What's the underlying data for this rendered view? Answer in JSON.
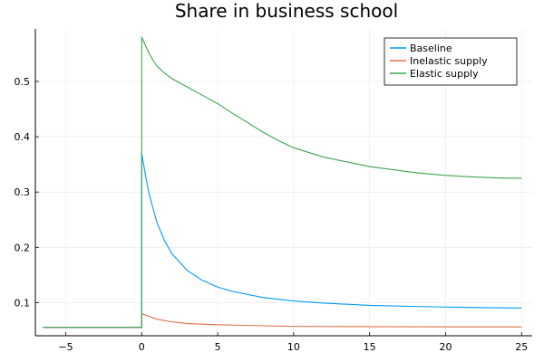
{
  "chart_data": {
    "type": "line",
    "title": "Share in business school",
    "xlabel": "",
    "ylabel": "",
    "xlim": [
      -7,
      25.7
    ],
    "ylim": [
      0.04,
      0.595
    ],
    "x_ticks": [
      -5,
      0,
      5,
      10,
      15,
      20,
      25
    ],
    "x_tick_labels": [
      "−5",
      "0",
      "5",
      "10",
      "15",
      "20",
      "25"
    ],
    "y_ticks": [
      0.1,
      0.2,
      0.3,
      0.4,
      0.5
    ],
    "y_tick_labels": [
      "0.1",
      "0.2",
      "0.3",
      "0.4",
      "0.5"
    ],
    "grid": true,
    "legend_position": "top-right",
    "series": [
      {
        "name": "Baseline",
        "color": "#009AFA",
        "points": [
          [
            -6.5,
            0.055
          ],
          [
            -0.001,
            0.055
          ],
          [
            0,
            0.37
          ],
          [
            0.25,
            0.33
          ],
          [
            0.5,
            0.295
          ],
          [
            1,
            0.245
          ],
          [
            1.5,
            0.212
          ],
          [
            2,
            0.188
          ],
          [
            3,
            0.158
          ],
          [
            4,
            0.14
          ],
          [
            5,
            0.128
          ],
          [
            6,
            0.12
          ],
          [
            8,
            0.109
          ],
          [
            10,
            0.103
          ],
          [
            12,
            0.099
          ],
          [
            15,
            0.095
          ],
          [
            18,
            0.093
          ],
          [
            20,
            0.092
          ],
          [
            22,
            0.091
          ],
          [
            25,
            0.09
          ]
        ]
      },
      {
        "name": "Inelastic supply",
        "color": "#E36F47",
        "points": [
          [
            -6.5,
            0.055
          ],
          [
            -0.001,
            0.055
          ],
          [
            0,
            0.08
          ],
          [
            0.5,
            0.075
          ],
          [
            1,
            0.07
          ],
          [
            2,
            0.065
          ],
          [
            3,
            0.062
          ],
          [
            5,
            0.06
          ],
          [
            8,
            0.058
          ],
          [
            10,
            0.057
          ],
          [
            15,
            0.0565
          ],
          [
            20,
            0.056
          ],
          [
            25,
            0.056
          ]
        ]
      },
      {
        "name": "Elastic supply",
        "color": "#3EA44E",
        "points": [
          [
            -6.5,
            0.055
          ],
          [
            -0.001,
            0.055
          ],
          [
            0,
            0.58
          ],
          [
            0.25,
            0.565
          ],
          [
            0.5,
            0.55
          ],
          [
            0.75,
            0.538
          ],
          [
            1,
            0.528
          ],
          [
            1.5,
            0.515
          ],
          [
            2,
            0.505
          ],
          [
            3,
            0.49
          ],
          [
            4,
            0.475
          ],
          [
            5,
            0.46
          ],
          [
            6,
            0.442
          ],
          [
            7,
            0.425
          ],
          [
            8,
            0.408
          ],
          [
            9,
            0.393
          ],
          [
            10,
            0.38
          ],
          [
            12,
            0.363
          ],
          [
            15,
            0.346
          ],
          [
            18,
            0.335
          ],
          [
            20,
            0.33
          ],
          [
            22,
            0.327
          ],
          [
            24,
            0.325
          ],
          [
            25,
            0.325
          ]
        ]
      }
    ]
  }
}
